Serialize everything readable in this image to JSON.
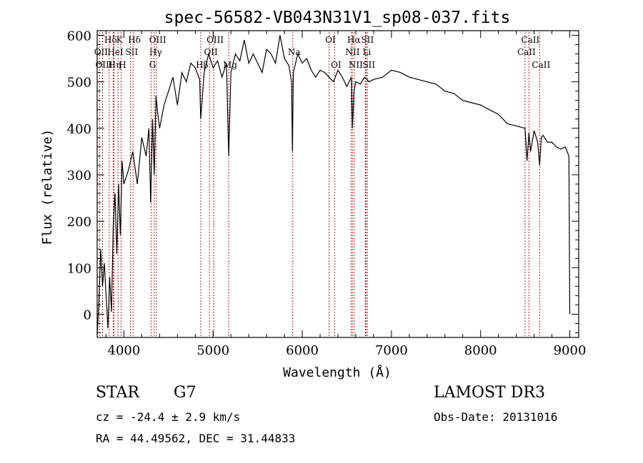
{
  "chart_data": {
    "type": "line",
    "title": "spec-56582-VB043N31V1_sp08-037.fits",
    "xlabel": "Wavelength (Å)",
    "ylabel": "Flux (relative)",
    "xlim": [
      3700,
      9100
    ],
    "ylim": [
      -50,
      610
    ],
    "xticks": [
      4000,
      5000,
      6000,
      7000,
      8000,
      9000
    ],
    "xtick_labels": [
      "4000",
      "5000",
      "6000",
      "7000",
      "8000",
      "9000"
    ],
    "yticks": [
      0,
      100,
      200,
      300,
      400,
      500,
      600
    ],
    "ytick_labels": [
      "0",
      "100",
      "200",
      "300",
      "400",
      "500",
      "600"
    ],
    "series": [
      {
        "name": "flux",
        "x": [
          3700,
          3720,
          3740,
          3760,
          3780,
          3800,
          3820,
          3840,
          3860,
          3880,
          3900,
          3920,
          3940,
          3960,
          3980,
          4000,
          4050,
          4100,
          4150,
          4200,
          4250,
          4280,
          4300,
          4320,
          4340,
          4360,
          4380,
          4400,
          4450,
          4500,
          4550,
          4600,
          4650,
          4700,
          4750,
          4800,
          4850,
          4861,
          4900,
          4950,
          5000,
          5050,
          5100,
          5150,
          5175,
          5200,
          5250,
          5300,
          5350,
          5400,
          5450,
          5500,
          5550,
          5600,
          5650,
          5700,
          5750,
          5800,
          5850,
          5880,
          5890,
          5900,
          5950,
          6000,
          6050,
          6100,
          6150,
          6200,
          6250,
          6300,
          6350,
          6400,
          6450,
          6500,
          6550,
          6563,
          6580,
          6600,
          6650,
          6700,
          6750,
          6800,
          6900,
          7000,
          7100,
          7200,
          7300,
          7400,
          7500,
          7600,
          7700,
          7800,
          7900,
          8000,
          8100,
          8200,
          8300,
          8400,
          8498,
          8520,
          8542,
          8560,
          8600,
          8640,
          8662,
          8680,
          8700,
          8750,
          8800,
          8850,
          8900,
          8950,
          8990,
          9000
        ],
        "values": [
          -45,
          30,
          140,
          60,
          110,
          40,
          -30,
          80,
          5,
          190,
          260,
          130,
          280,
          170,
          330,
          280,
          310,
          350,
          280,
          380,
          340,
          400,
          240,
          420,
          300,
          470,
          430,
          400,
          450,
          480,
          510,
          450,
          520,
          500,
          540,
          530,
          505,
          420,
          520,
          560,
          530,
          545,
          510,
          540,
          340,
          520,
          560,
          545,
          590,
          540,
          560,
          540,
          520,
          570,
          560,
          540,
          600,
          550,
          535,
          500,
          350,
          520,
          560,
          540,
          550,
          525,
          510,
          525,
          520,
          510,
          500,
          525,
          510,
          490,
          510,
          400,
          480,
          500,
          495,
          510,
          500,
          505,
          510,
          525,
          520,
          510,
          505,
          500,
          495,
          480,
          475,
          460,
          455,
          450,
          440,
          430,
          410,
          405,
          400,
          330,
          390,
          350,
          395,
          370,
          320,
          380,
          385,
          370,
          370,
          360,
          355,
          360,
          340,
          0
        ]
      }
    ],
    "line_markers": [
      {
        "label": "Hδ",
        "x": 3835,
        "row": 0
      },
      {
        "label": "OII",
        "x": 3727,
        "row": 1
      },
      {
        "label": "OIII",
        "x": 3760,
        "row": 2
      },
      {
        "label": "K",
        "x": 3934,
        "row": 0
      },
      {
        "label": "HeI",
        "x": 3889,
        "row": 1
      },
      {
        "label": "Hη",
        "x": 3880,
        "row": 2
      },
      {
        "label": "SII",
        "x": 4072,
        "row": 1
      },
      {
        "label": "H",
        "x": 3968,
        "row": 2
      },
      {
        "label": "Hδ",
        "x": 4102,
        "row": 0
      },
      {
        "label": "OIII",
        "x": 4363,
        "row": 0
      },
      {
        "label": "Hγ",
        "x": 4340,
        "row": 1
      },
      {
        "label": "G",
        "x": 4305,
        "row": 2
      },
      {
        "label": "OIII",
        "x": 5007,
        "row": 0
      },
      {
        "label": "OII",
        "x": 4959,
        "row": 1
      },
      {
        "label": "Hβ",
        "x": 4861,
        "row": 2
      },
      {
        "label": "Mg",
        "x": 5175,
        "row": 2
      },
      {
        "label": "Na",
        "x": 5893,
        "row": 1
      },
      {
        "label": "OI",
        "x": 6300,
        "row": 0
      },
      {
        "label": "OI",
        "x": 6363,
        "row": 2
      },
      {
        "label": "Hα",
        "x": 6563,
        "row": 0
      },
      {
        "label": "SII",
        "x": 6716,
        "row": 0
      },
      {
        "label": "NII",
        "x": 6548,
        "row": 1
      },
      {
        "label": "Li",
        "x": 6708,
        "row": 1
      },
      {
        "label": "NII",
        "x": 6583,
        "row": 2
      },
      {
        "label": "SII",
        "x": 6731,
        "row": 2
      },
      {
        "label": "CaII",
        "x": 8542,
        "row": 0
      },
      {
        "label": "CaII",
        "x": 8498,
        "row": 1
      },
      {
        "label": "CaII",
        "x": 8662,
        "row": 2
      }
    ]
  },
  "info": {
    "class_label": "STAR",
    "subclass": "G7",
    "survey": "LAMOST DR3",
    "redshift": "cz = -24.4 ± 2.9 km/s",
    "obs_date": "Obs-Date: 20131016",
    "coords": "RA =  44.49562, DEC =  31.44833"
  },
  "colors": {
    "spectrum": "#000000",
    "marker_line": "#b22222",
    "background": "#ffffff"
  }
}
